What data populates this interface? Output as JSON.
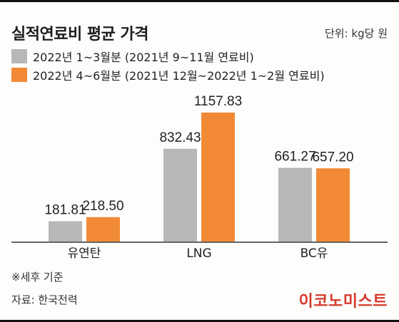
{
  "title": "실적연료비 평균 가격",
  "unit": "단위: kg당 원",
  "legend": [
    {
      "label": "2022년 1~3월분 (2021년 9~11월 연료비)",
      "color": "#b7b7b7"
    },
    {
      "label": "2022년 4~6월분 (2021년 12월~2022년 1~2월 연료비)",
      "color": "#f28a35"
    }
  ],
  "note": "※세후 기준",
  "source": "자료: 한국전력",
  "brand": "이코노미스트",
  "chart_data": {
    "type": "bar",
    "categories": [
      "유연탄",
      "LNG",
      "BC유"
    ],
    "series": [
      {
        "name": "2022년 1~3월분 (2021년 9~11월 연료비)",
        "values": [
          181.81,
          832.43,
          661.27
        ],
        "labels": [
          "181.81",
          "832.43",
          "661.27"
        ],
        "color": "#b7b7b7"
      },
      {
        "name": "2022년 4~6월분 (2021년 12월~2022년 1~2월 연료비)",
        "values": [
          218.5,
          1157.83,
          657.2
        ],
        "labels": [
          "218.50",
          "1157.83",
          "657.20"
        ],
        "color": "#f28a35"
      }
    ],
    "ylim": [
      0,
      1157.83
    ],
    "grid": false
  }
}
